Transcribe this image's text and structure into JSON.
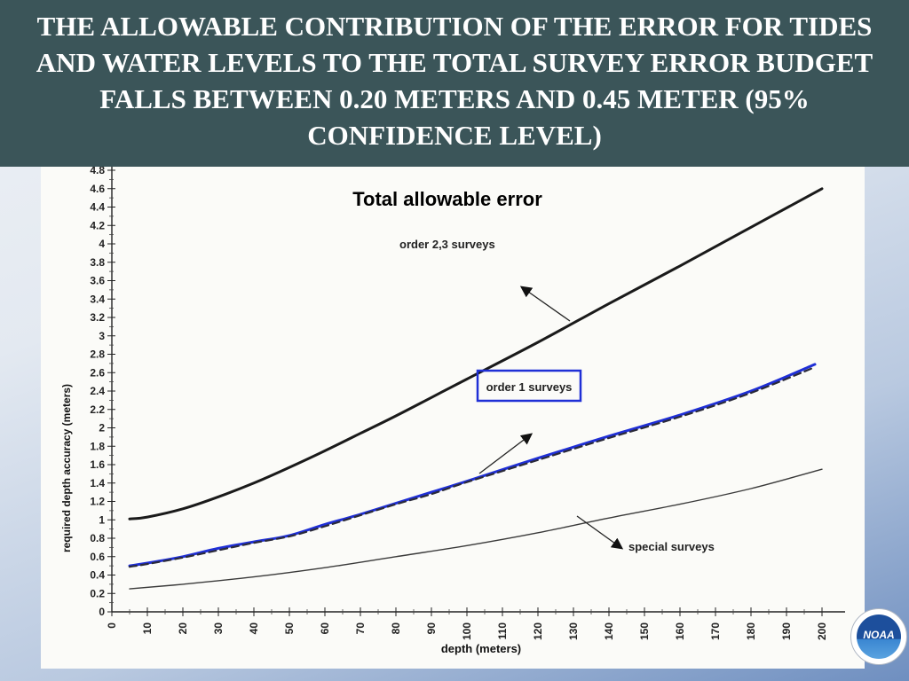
{
  "slide": {
    "title": "THE ALLOWABLE CONTRIBUTION OF THE ERROR FOR TIDES AND WATER LEVELS TO THE TOTAL SURVEY ERROR BUDGET FALLS BETWEEN 0.20 METERS AND 0.45 METER (95% CONFIDENCE LEVEL)",
    "logo_text": "NOAA"
  },
  "chart_data": {
    "type": "line",
    "title": "Total allowable error",
    "xlabel": "depth (meters)",
    "ylabel": "required depth accuracy (meters)",
    "xlim": [
      0,
      205
    ],
    "ylim": [
      0,
      4.8
    ],
    "x_ticks": [
      "0",
      "10",
      "20",
      "30",
      "40",
      "50",
      "60",
      "70",
      "80",
      "90",
      "100",
      "110",
      "120",
      "130",
      "140",
      "150",
      "160",
      "170",
      "180",
      "190",
      "200"
    ],
    "y_ticks": [
      "0",
      "0.2",
      "0.4",
      "0.6",
      "0.8",
      "1",
      "1.2",
      "1.4",
      "1.6",
      "1.8",
      "2",
      "2.2",
      "2.4",
      "2.6",
      "2.8",
      "3",
      "3.2",
      "3.4",
      "3.6",
      "3.8",
      "4",
      "4.2",
      "4.4",
      "4.6",
      "4.8"
    ],
    "grid": false,
    "series": [
      {
        "name": "order 2,3 surveys",
        "color": "#1a1a1a",
        "x": [
          5,
          10,
          20,
          30,
          40,
          50,
          60,
          70,
          80,
          90,
          100,
          120,
          140,
          160,
          180,
          200
        ],
        "y": [
          1.01,
          1.03,
          1.12,
          1.25,
          1.4,
          1.57,
          1.75,
          1.94,
          2.13,
          2.33,
          2.53,
          2.93,
          3.35,
          3.76,
          4.18,
          4.6
        ]
      },
      {
        "name": "order 1 surveys",
        "color": "#1f2fd6",
        "x": [
          5,
          10,
          20,
          30,
          40,
          50,
          60,
          70,
          80,
          90,
          100,
          120,
          140,
          160,
          180,
          198
        ],
        "y": [
          0.5,
          0.53,
          0.6,
          0.69,
          0.76,
          0.83,
          0.95,
          1.06,
          1.18,
          1.3,
          1.42,
          1.67,
          1.91,
          2.14,
          2.4,
          2.69
        ]
      },
      {
        "name": "order 1 surveys",
        "color": "#2a2a3a",
        "dashed": true,
        "x": [
          5,
          10,
          20,
          30,
          40,
          50,
          60,
          70,
          80,
          90,
          100,
          120,
          140,
          160,
          180,
          198
        ],
        "y": [
          0.49,
          0.52,
          0.59,
          0.67,
          0.75,
          0.82,
          0.93,
          1.05,
          1.17,
          1.28,
          1.41,
          1.65,
          1.89,
          2.12,
          2.38,
          2.66
        ]
      },
      {
        "name": "special surveys",
        "color": "#3a3a3a",
        "x": [
          5,
          20,
          40,
          60,
          80,
          100,
          120,
          140,
          160,
          180,
          200
        ],
        "y": [
          0.25,
          0.3,
          0.38,
          0.48,
          0.6,
          0.72,
          0.86,
          1.02,
          1.17,
          1.34,
          1.55
        ]
      }
    ],
    "annotations": [
      {
        "text": "order 2,3 surveys",
        "boxed": false
      },
      {
        "text": "order 1 surveys",
        "boxed": true,
        "box_color": "#1f2fd6"
      },
      {
        "text": "special surveys",
        "boxed": false
      }
    ]
  }
}
